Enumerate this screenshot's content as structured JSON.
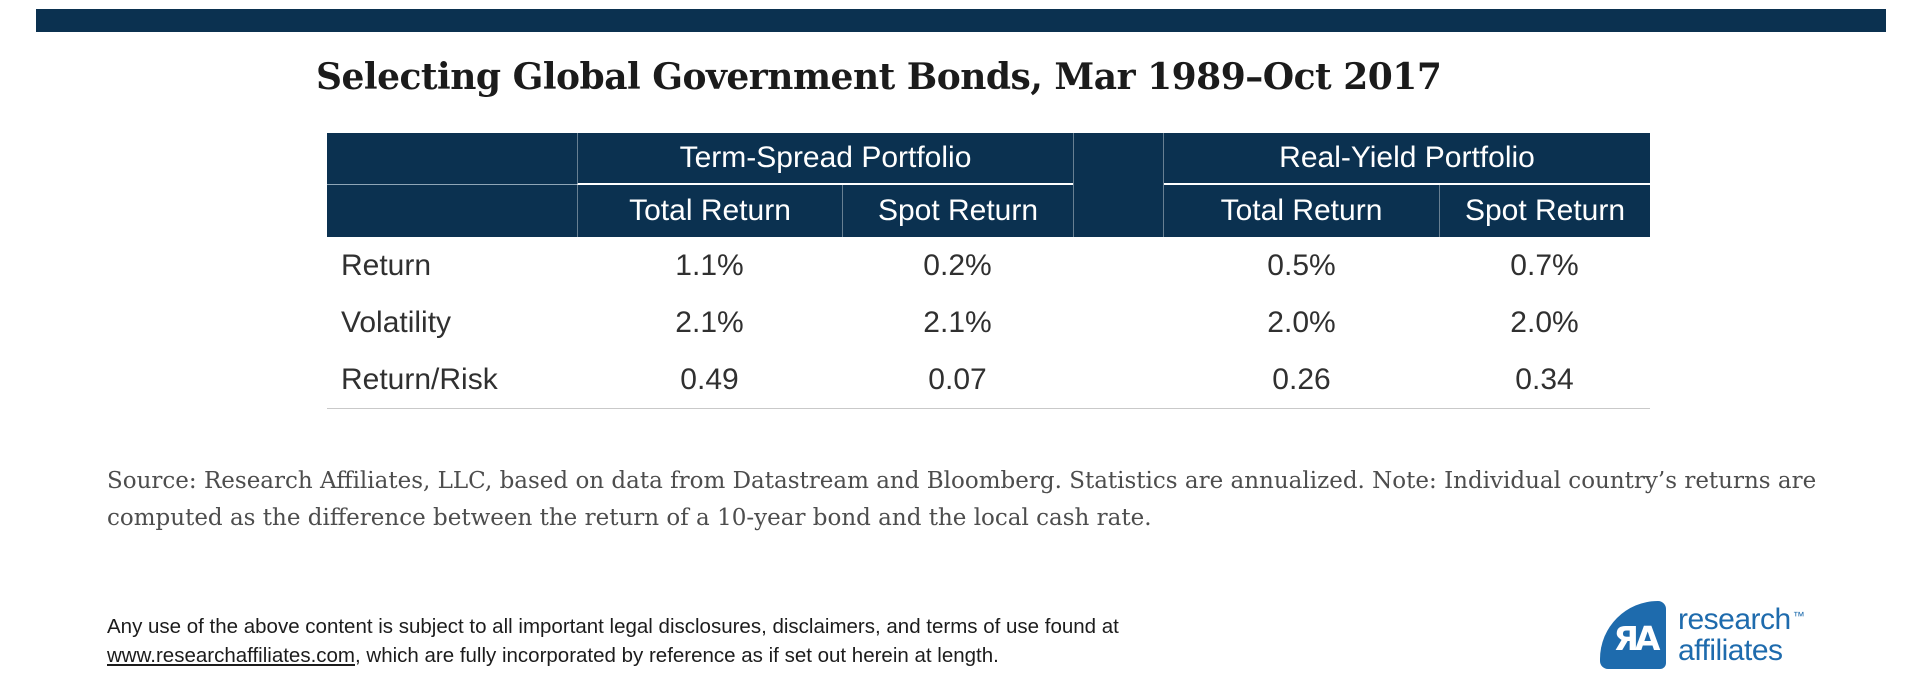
{
  "title": "Selecting Global Government Bonds, Mar 1989–Oct 2017",
  "chart_data": {
    "type": "table",
    "title": "Selecting Global Government Bonds, Mar 1989–Oct 2017",
    "column_groups": [
      {
        "label": "Term-Spread Portfolio",
        "columns": [
          "Total Return",
          "Spot Return"
        ]
      },
      {
        "label": "Real-Yield Portfolio",
        "columns": [
          "Total Return",
          "Spot Return"
        ]
      }
    ],
    "sub_headers": [
      "Total Return",
      "Spot Return",
      "Total Return",
      "Spot Return"
    ],
    "rows": [
      {
        "label": "Return",
        "values": [
          "1.1%",
          "0.2%",
          "0.5%",
          "0.7%"
        ]
      },
      {
        "label": "Volatility",
        "values": [
          "2.1%",
          "2.1%",
          "2.0%",
          "2.0%"
        ]
      },
      {
        "label": "Return/Risk",
        "values": [
          "0.49",
          "0.07",
          "0.26",
          "0.34"
        ]
      }
    ]
  },
  "source_note": {
    "line1": "Source: Research Affiliates, LLC, based on data from Datastream and Bloomberg. Statistics are annualized. Note: Individual country’s returns are",
    "line2": "computed as the difference between the return of a 10-year bond and the local cash rate."
  },
  "legal": {
    "line1": "Any use of the above content is subject to all important legal disclosures, disclaimers, and terms of use found at",
    "link": "www.researchaffiliates.com",
    "line2_rest": ", which are fully incorporated by reference as if set out herein at length."
  },
  "logo": {
    "monogram": "ЯA",
    "name_line1": "research",
    "name_line2": "affiliates",
    "trademark": "™"
  },
  "colors": {
    "navy": "#0b3150",
    "brand_blue": "#1e6bad",
    "rule_gray": "#c9c9c9"
  }
}
